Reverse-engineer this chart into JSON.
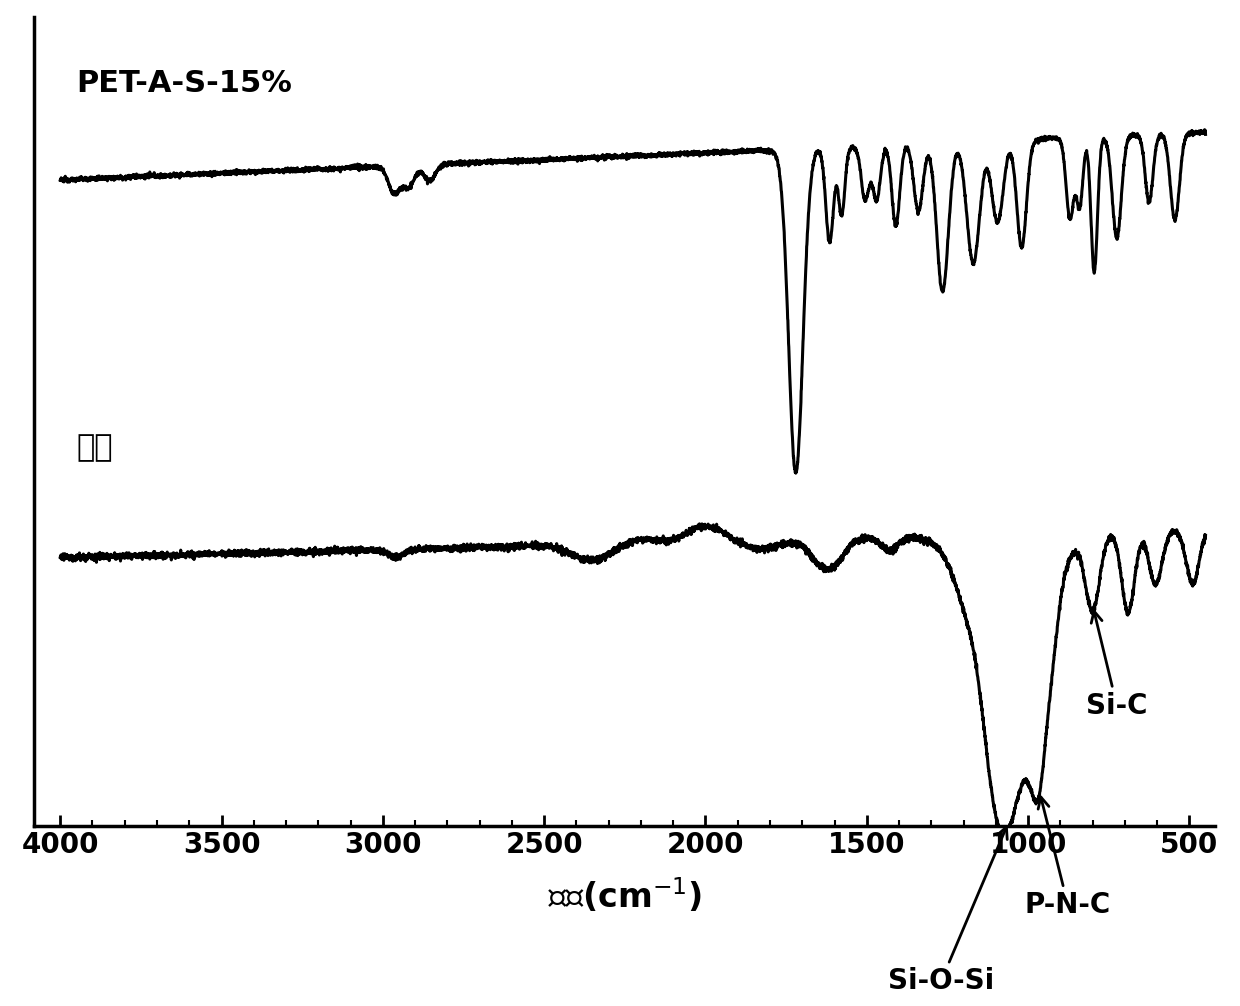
{
  "label_top": "PET-A-S-15%",
  "label_bottom": "残炭",
  "annotation1": "Si-O-Si",
  "annotation2": "P-N-C",
  "annotation3": "Si-C",
  "background_color": "#ffffff",
  "line_color": "#000000",
  "xticks": [
    4000,
    3500,
    3000,
    2500,
    2000,
    1500,
    1000,
    500
  ],
  "fontsize_label": 24,
  "fontsize_annotation": 20,
  "fontsize_tick": 20,
  "fontsize_spectrum_label": 22
}
